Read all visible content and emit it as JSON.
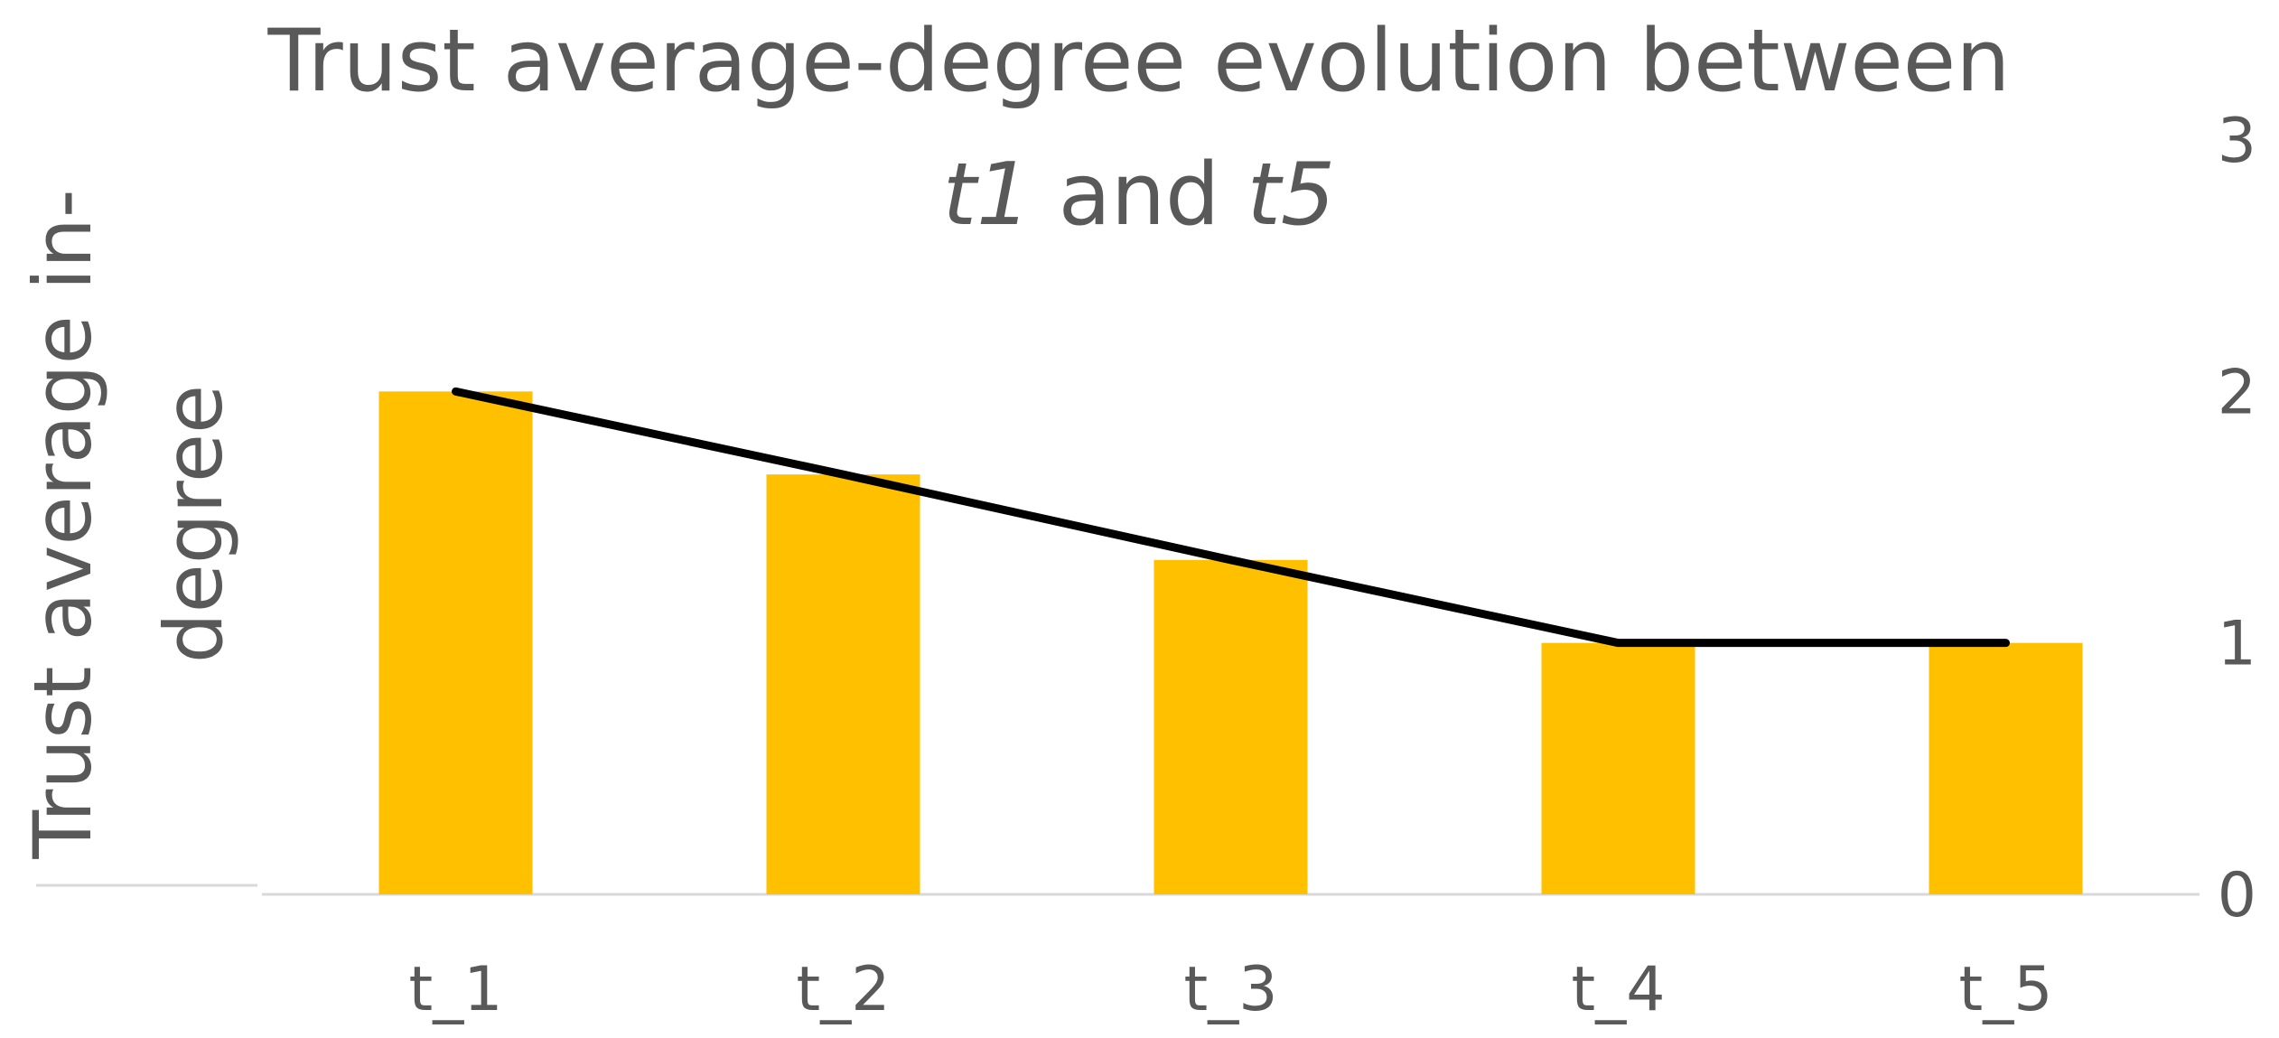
{
  "chart_data": {
    "type": "bar",
    "title": {
      "line1": "Trust average-degree evolution between",
      "line2_a": "t1",
      "line2_b": " and ",
      "line2_c": "t5"
    },
    "ylabel": {
      "line1": "Trust average in-",
      "line2": "degree"
    },
    "xlabel": "",
    "categories": [
      "t_1",
      "t_2",
      "t_3",
      "t_4",
      "t_5"
    ],
    "series": [
      {
        "type": "bar",
        "values": [
          2.0,
          1.67,
          1.33,
          1.0,
          1.0
        ],
        "color": "#FFC000"
      },
      {
        "type": "line",
        "values": [
          2.0,
          1.67,
          1.33,
          1.0,
          1.0
        ],
        "color": "#000000"
      }
    ],
    "ylim": [
      0,
      3
    ],
    "yticks": [
      0,
      1,
      2,
      3
    ],
    "y_axis_side": "right",
    "grid": false,
    "legend": "none"
  }
}
